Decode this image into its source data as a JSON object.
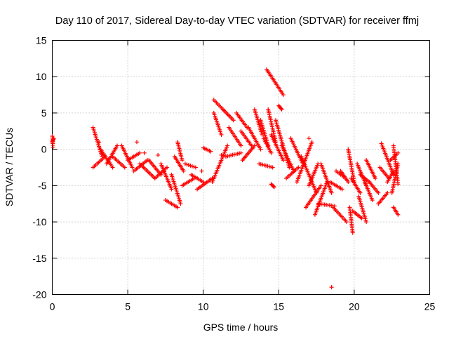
{
  "chart_data": {
    "type": "scatter",
    "title": "Day 110 of 2017, Sidereal Day-to-day VTEC variation (SDTVAR) for receiver ffmj",
    "xlabel": "GPS time / hours",
    "ylabel": "SDTVAR / TECUs",
    "xlim": [
      0,
      25
    ],
    "ylim": [
      -20,
      15
    ],
    "xticks": [
      0,
      5,
      10,
      15,
      20,
      25
    ],
    "yticks": [
      -20,
      -15,
      -10,
      -5,
      0,
      5,
      10,
      15
    ],
    "grid": true,
    "marker": "plus",
    "color": "#ff0000",
    "tracks": [
      {
        "x0": 0.0,
        "y0": 1.8,
        "x1": 0.05,
        "y1": 0.3
      },
      {
        "x0": 0.0,
        "y0": 1.0,
        "x1": 0.1,
        "y1": 1.5
      },
      {
        "x0": 2.7,
        "y0": 3.0,
        "x1": 3.3,
        "y1": -1.0
      },
      {
        "x0": 2.7,
        "y0": -2.5,
        "x1": 3.5,
        "y1": -1.0
      },
      {
        "x0": 3.2,
        "y0": 0.0,
        "x1": 4.0,
        "y1": -2.5
      },
      {
        "x0": 3.6,
        "y0": -2.0,
        "x1": 4.3,
        "y1": 0.5
      },
      {
        "x0": 4.0,
        "y0": -1.0,
        "x1": 4.8,
        "y1": -2.5
      },
      {
        "x0": 4.6,
        "y0": 0.5,
        "x1": 5.3,
        "y1": -2.5
      },
      {
        "x0": 5.0,
        "y0": -1.5,
        "x1": 5.8,
        "y1": -0.5
      },
      {
        "x0": 5.4,
        "y0": -3.0,
        "x1": 6.3,
        "y1": -1.5
      },
      {
        "x0": 5.8,
        "y0": -2.0,
        "x1": 6.8,
        "y1": -4.0
      },
      {
        "x0": 6.4,
        "y0": -1.5,
        "x1": 7.2,
        "y1": -3.5
      },
      {
        "x0": 6.8,
        "y0": -4.0,
        "x1": 7.6,
        "y1": -2.5
      },
      {
        "x0": 7.2,
        "y0": -2.0,
        "x1": 7.9,
        "y1": -5.5
      },
      {
        "x0": 7.5,
        "y0": -7.0,
        "x1": 8.3,
        "y1": -8.0
      },
      {
        "x0": 7.9,
        "y0": -3.5,
        "x1": 8.5,
        "y1": -7.5
      },
      {
        "x0": 8.1,
        "y0": -1.0,
        "x1": 8.7,
        "y1": -3.0
      },
      {
        "x0": 8.3,
        "y0": 1.0,
        "x1": 8.6,
        "y1": -1.5
      },
      {
        "x0": 8.6,
        "y0": -5.0,
        "x1": 9.4,
        "y1": -4.0
      },
      {
        "x0": 8.8,
        "y0": -2.0,
        "x1": 9.5,
        "y1": -2.5
      },
      {
        "x0": 9.2,
        "y0": -3.5,
        "x1": 10.0,
        "y1": -4.5
      },
      {
        "x0": 9.6,
        "y0": -5.5,
        "x1": 10.6,
        "y1": -4.0
      },
      {
        "x0": 10.0,
        "y0": 0.2,
        "x1": 10.5,
        "y1": -0.3
      },
      {
        "x0": 10.7,
        "y0": 6.8,
        "x1": 11.3,
        "y1": 5.5
      },
      {
        "x0": 10.7,
        "y0": 5.0,
        "x1": 11.2,
        "y1": 2.0
      },
      {
        "x0": 10.6,
        "y0": -4.5,
        "x1": 11.6,
        "y1": 0.5
      },
      {
        "x0": 11.3,
        "y0": 5.5,
        "x1": 12.0,
        "y1": 4.0
      },
      {
        "x0": 11.7,
        "y0": 3.0,
        "x1": 12.5,
        "y1": 0.5
      },
      {
        "x0": 11.5,
        "y0": -1.0,
        "x1": 12.5,
        "y1": -0.5
      },
      {
        "x0": 12.2,
        "y0": 5.0,
        "x1": 12.9,
        "y1": 3.0
      },
      {
        "x0": 12.5,
        "y0": 2.5,
        "x1": 13.2,
        "y1": 0.5
      },
      {
        "x0": 12.6,
        "y0": -1.5,
        "x1": 13.4,
        "y1": 0.5
      },
      {
        "x0": 13.0,
        "y0": 3.0,
        "x1": 13.8,
        "y1": 0.0
      },
      {
        "x0": 13.4,
        "y0": 5.5,
        "x1": 13.9,
        "y1": 2.0
      },
      {
        "x0": 13.8,
        "y0": 4.0,
        "x1": 14.3,
        "y1": 0.5
      },
      {
        "x0": 14.0,
        "y0": 1.5,
        "x1": 14.5,
        "y1": -0.5
      },
      {
        "x0": 14.2,
        "y0": 11.0,
        "x1": 15.3,
        "y1": 7.5
      },
      {
        "x0": 14.3,
        "y0": 5.5,
        "x1": 14.8,
        "y1": 1.0
      },
      {
        "x0": 14.5,
        "y0": 2.0,
        "x1": 15.3,
        "y1": -1.5
      },
      {
        "x0": 13.7,
        "y0": -2.0,
        "x1": 14.6,
        "y1": -2.5
      },
      {
        "x0": 15.0,
        "y0": 6.0,
        "x1": 15.2,
        "y1": 5.5
      },
      {
        "x0": 14.5,
        "y0": -4.8,
        "x1": 14.7,
        "y1": -5.2
      },
      {
        "x0": 14.8,
        "y0": 4.0,
        "x1": 15.7,
        "y1": -2.5
      },
      {
        "x0": 15.2,
        "y0": 0.5,
        "x1": 16.0,
        "y1": -3.0
      },
      {
        "x0": 15.5,
        "y0": -4.0,
        "x1": 16.3,
        "y1": -2.5
      },
      {
        "x0": 15.8,
        "y0": 1.5,
        "x1": 16.6,
        "y1": -2.0
      },
      {
        "x0": 16.2,
        "y0": -4.5,
        "x1": 17.2,
        "y1": 1.0
      },
      {
        "x0": 16.5,
        "y0": -1.0,
        "x1": 17.5,
        "y1": -6.0
      },
      {
        "x0": 17.0,
        "y0": -5.0,
        "x1": 17.6,
        "y1": -2.0
      },
      {
        "x0": 16.8,
        "y0": -8.0,
        "x1": 17.8,
        "y1": -5.0
      },
      {
        "x0": 17.4,
        "y0": -9.0,
        "x1": 18.2,
        "y1": -4.5
      },
      {
        "x0": 17.8,
        "y0": -2.0,
        "x1": 18.5,
        "y1": -6.0
      },
      {
        "x0": 17.6,
        "y0": -7.5,
        "x1": 18.7,
        "y1": -7.8
      },
      {
        "x0": 18.4,
        "y0": -4.5,
        "x1": 19.2,
        "y1": -5.5
      },
      {
        "x0": 18.8,
        "y0": -3.0,
        "x1": 19.3,
        "y1": -3.8
      },
      {
        "x0": 18.6,
        "y0": -8.0,
        "x1": 19.5,
        "y1": -10.0
      },
      {
        "x0": 19.1,
        "y0": -3.0,
        "x1": 19.6,
        "y1": -4.5
      },
      {
        "x0": 19.6,
        "y0": 0.0,
        "x1": 20.0,
        "y1": -4.5
      },
      {
        "x0": 19.7,
        "y0": -8.0,
        "x1": 19.9,
        "y1": -11.5
      },
      {
        "x0": 19.8,
        "y0": -4.0,
        "x1": 20.4,
        "y1": -6.0
      },
      {
        "x0": 19.9,
        "y0": -8.5,
        "x1": 20.5,
        "y1": -9.5
      },
      {
        "x0": 20.2,
        "y0": -2.0,
        "x1": 20.8,
        "y1": -5.0
      },
      {
        "x0": 20.3,
        "y0": -6.5,
        "x1": 20.8,
        "y1": -10.0
      },
      {
        "x0": 20.7,
        "y0": -4.5,
        "x1": 21.2,
        "y1": -7.0
      },
      {
        "x0": 20.8,
        "y0": -1.5,
        "x1": 21.4,
        "y1": -4.0
      },
      {
        "x0": 20.4,
        "y0": -3.5,
        "x1": 21.0,
        "y1": -4.5
      },
      {
        "x0": 21.0,
        "y0": -4.5,
        "x1": 21.6,
        "y1": -6.0
      },
      {
        "x0": 21.6,
        "y0": -7.5,
        "x1": 22.2,
        "y1": -6.0
      },
      {
        "x0": 21.7,
        "y0": -2.5,
        "x1": 22.3,
        "y1": -4.0
      },
      {
        "x0": 21.8,
        "y0": 0.8,
        "x1": 22.6,
        "y1": -3.5
      },
      {
        "x0": 22.2,
        "y0": -4.5,
        "x1": 22.6,
        "y1": -3.0
      },
      {
        "x0": 22.4,
        "y0": -1.5,
        "x1": 22.9,
        "y1": -0.5
      },
      {
        "x0": 22.5,
        "y0": -6.0,
        "x1": 22.9,
        "y1": -2.0
      },
      {
        "x0": 22.6,
        "y0": 0.5,
        "x1": 22.9,
        "y1": -4.8
      },
      {
        "x0": 22.6,
        "y0": -8.0,
        "x1": 22.9,
        "y1": -9.0
      }
    ],
    "points": [
      {
        "x": 18.5,
        "y": -19.0
      },
      {
        "x": 3.1,
        "y": 1.0
      },
      {
        "x": 5.6,
        "y": 1.0
      },
      {
        "x": 6.1,
        "y": -0.5
      },
      {
        "x": 7.0,
        "y": -0.8
      },
      {
        "x": 17.0,
        "y": 1.5
      },
      {
        "x": 11.2,
        "y": -0.8
      },
      {
        "x": 9.9,
        "y": -3.0
      }
    ]
  }
}
